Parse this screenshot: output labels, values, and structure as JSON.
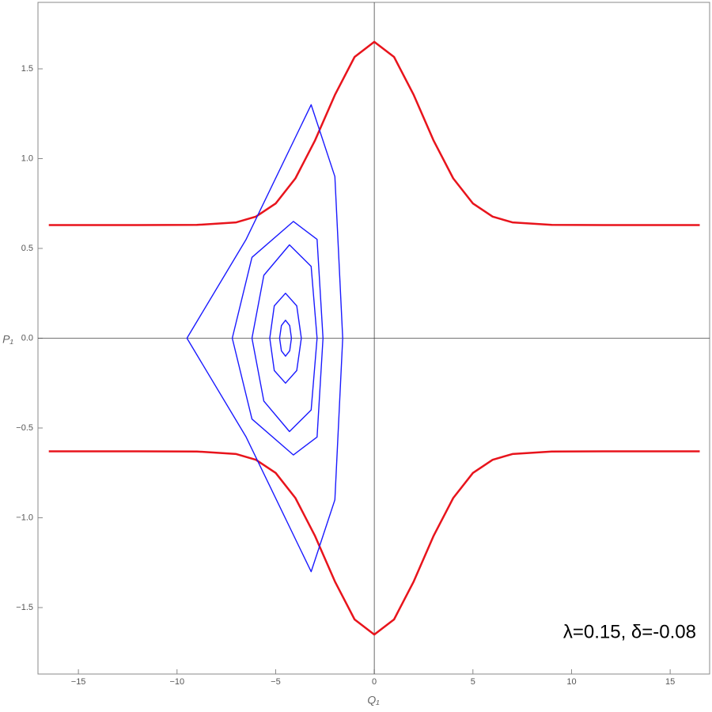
{
  "chart_data": {
    "type": "line",
    "annotation": "λ=0.15, δ=-0.08",
    "xlabel": "Q₁",
    "ylabel": "P₁",
    "xlim": [
      -17.05,
      17.0
    ],
    "ylim": [
      -1.87,
      1.87
    ],
    "xticks": [
      {
        "value": -15,
        "label": "−15"
      },
      {
        "value": -10,
        "label": "−10"
      },
      {
        "value": -5,
        "label": "−5"
      },
      0,
      5,
      10,
      15
    ],
    "yticks": [
      {
        "value": -1.5,
        "label": "−1.5"
      },
      {
        "value": -1.0,
        "label": "−1.0"
      },
      {
        "value": -0.5,
        "label": "−0.5"
      },
      {
        "value": 0,
        "label": "0.0"
      },
      {
        "value": 0.5,
        "label": "0.5"
      },
      {
        "value": 1.0,
        "label": "1.0"
      },
      {
        "value": 1.5,
        "label": "1.5"
      }
    ],
    "series": [
      {
        "color": "#e8141c",
        "x": [
          -16.5,
          -12,
          -9,
          -7,
          -6,
          -5,
          -4,
          -3,
          -2,
          -1,
          0,
          1,
          2,
          3,
          4,
          5,
          6,
          7,
          9,
          12,
          16.5
        ],
        "values": [
          0.63,
          0.63,
          0.631,
          0.645,
          0.677,
          0.75,
          0.89,
          1.102,
          1.354,
          1.566,
          1.65,
          1.566,
          1.354,
          1.102,
          0.89,
          0.75,
          0.677,
          0.645,
          0.631,
          0.63,
          0.63
        ]
      },
      {
        "color": "#e8141c",
        "x": [
          -16.5,
          -12,
          -9,
          -7,
          -6,
          -5,
          -4,
          -3,
          -2,
          -1,
          0,
          1,
          2,
          3,
          4,
          5,
          6,
          7,
          9,
          12,
          16.5
        ],
        "values": [
          -0.63,
          -0.63,
          -0.631,
          -0.645,
          -0.677,
          -0.75,
          -0.89,
          -1.102,
          -1.354,
          -1.566,
          -1.65,
          -1.566,
          -1.354,
          -1.102,
          -0.89,
          -0.75,
          -0.677,
          -0.645,
          -0.631,
          -0.63,
          -0.63
        ]
      },
      {
        "color": "#1a1aff",
        "x": [
          -4.2,
          -4.29,
          -4.5,
          -4.71,
          -4.8,
          -4.71,
          -4.5,
          -4.29,
          -4.2
        ],
        "values": [
          0,
          0.07,
          0.1,
          0.07,
          0,
          -0.07,
          -0.1,
          -0.07,
          0
        ]
      },
      {
        "color": "#1a1aff",
        "x": [
          -3.7,
          -3.93,
          -4.5,
          -5.07,
          -5.3,
          -5.07,
          -4.5,
          -3.93,
          -3.7
        ],
        "values": [
          0,
          0.18,
          0.25,
          0.18,
          0,
          -0.18,
          -0.25,
          -0.18,
          0
        ]
      },
      {
        "color": "#1a1aff",
        "x": [
          -2.9,
          -3.2,
          -4.3,
          -5.6,
          -6.2,
          -5.6,
          -4.3,
          -3.2,
          -2.9
        ],
        "values": [
          0,
          0.4,
          0.52,
          0.35,
          0,
          -0.35,
          -0.52,
          -0.4,
          0
        ]
      },
      {
        "color": "#1a1aff",
        "x": [
          -2.6,
          -2.9,
          -4.1,
          -6.2,
          -7.2,
          -6.2,
          -4.1,
          -2.9,
          -2.6
        ],
        "values": [
          0,
          0.55,
          0.65,
          0.45,
          0,
          -0.45,
          -0.65,
          -0.55,
          0
        ]
      },
      {
        "color": "#1a1aff",
        "x": [
          -1.6,
          -2.0,
          -3.2,
          -6.5,
          -9.5,
          -6.5,
          -3.2,
          -2.0,
          -1.6
        ],
        "values": [
          0,
          0.9,
          1.3,
          0.55,
          0,
          -0.55,
          -1.3,
          -0.9,
          0
        ]
      }
    ]
  }
}
